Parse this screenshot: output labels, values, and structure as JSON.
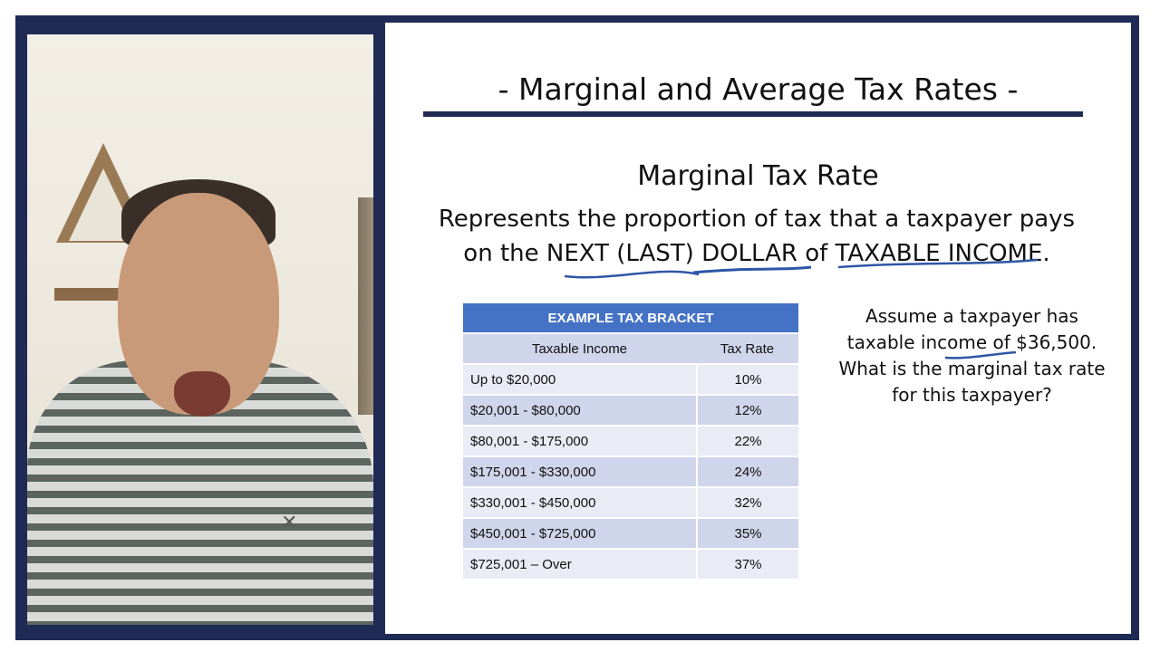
{
  "slide": {
    "title": "- Marginal and Average Tax Rates -",
    "subtitle": "Marginal Tax Rate",
    "definition_line1": "Represents the proportion of tax that a taxpayer pays",
    "definition_line2": "on the NEXT (LAST) DOLLAR of TAXABLE INCOME.",
    "question": "Assume a taxpayer has taxable income of $36,500. What is the marginal tax rate for this taxpayer?"
  },
  "table": {
    "title": "EXAMPLE TAX BRACKET",
    "col_income": "Taxable Income",
    "col_rate": "Tax Rate",
    "rows": [
      {
        "income": "Up to $20,000",
        "rate": "10%"
      },
      {
        "income": "$20,001 - $80,000",
        "rate": "12%"
      },
      {
        "income": "$80,001 - $175,000",
        "rate": "22%"
      },
      {
        "income": "$175,001 - $330,000",
        "rate": "24%"
      },
      {
        "income": "$330,001 - $450,000",
        "rate": "32%"
      },
      {
        "income": "$450,001 - $725,000",
        "rate": "35%"
      },
      {
        "income": "$725,001 – Over",
        "rate": "37%"
      }
    ]
  },
  "colors": {
    "frame": "#1f2a55",
    "table_header": "#4472c4",
    "ink": "#2d56a6"
  }
}
